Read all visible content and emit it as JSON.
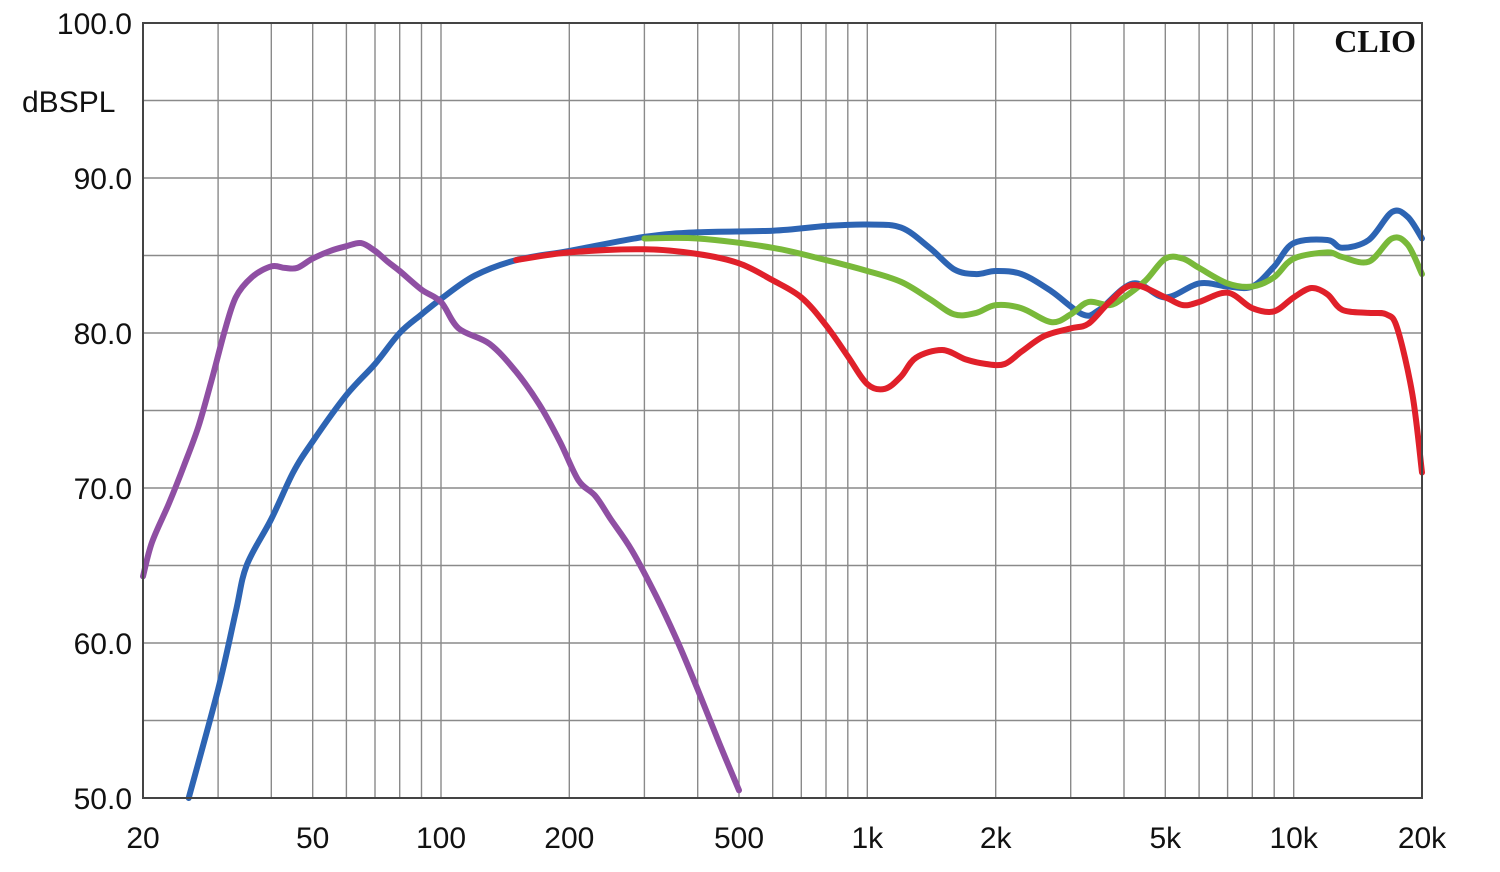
{
  "chart_data": {
    "type": "line",
    "title": "",
    "brand": "CLIO",
    "ylabel": "dBSPL",
    "xlabel": "",
    "x_scale": "log",
    "xlim": [
      20,
      20000
    ],
    "ylim": [
      50,
      100
    ],
    "grid": true,
    "x_ticks": [
      {
        "value": 20,
        "label": "20"
      },
      {
        "value": 50,
        "label": "50"
      },
      {
        "value": 100,
        "label": "100"
      },
      {
        "value": 200,
        "label": "200"
      },
      {
        "value": 500,
        "label": "500"
      },
      {
        "value": 1000,
        "label": "1k"
      },
      {
        "value": 2000,
        "label": "2k"
      },
      {
        "value": 5000,
        "label": "5k"
      },
      {
        "value": 10000,
        "label": "10k"
      },
      {
        "value": 20000,
        "label": "20k"
      }
    ],
    "y_ticks": [
      {
        "value": 100,
        "label": "100.0"
      },
      {
        "value": 90,
        "label": "90.0"
      },
      {
        "value": 80,
        "label": "80.0"
      },
      {
        "value": 70,
        "label": "70.0"
      },
      {
        "value": 60,
        "label": "60.0"
      },
      {
        "value": 50,
        "label": "50.0"
      }
    ],
    "series": [
      {
        "color": "#2d64b3",
        "points": [
          [
            25.6,
            50
          ],
          [
            30,
            57
          ],
          [
            33,
            62
          ],
          [
            35,
            65
          ],
          [
            40,
            68
          ],
          [
            45,
            71
          ],
          [
            50,
            73
          ],
          [
            60,
            76
          ],
          [
            70,
            78
          ],
          [
            80,
            80
          ],
          [
            90,
            81.2
          ],
          [
            100,
            82.2
          ],
          [
            120,
            83.7
          ],
          [
            150,
            84.7
          ],
          [
            200,
            85.3
          ],
          [
            300,
            86.2
          ],
          [
            400,
            86.5
          ],
          [
            600,
            86.6
          ],
          [
            800,
            86.9
          ],
          [
            1000,
            87
          ],
          [
            1200,
            86.8
          ],
          [
            1400,
            85.5
          ],
          [
            1600,
            84.1
          ],
          [
            1800,
            83.8
          ],
          [
            2000,
            84
          ],
          [
            2300,
            83.8
          ],
          [
            2700,
            82.7
          ],
          [
            3200,
            81.2
          ],
          [
            3500,
            81.5
          ],
          [
            4200,
            83.2
          ],
          [
            5000,
            82.3
          ],
          [
            6000,
            83.2
          ],
          [
            7000,
            83
          ],
          [
            8000,
            83
          ],
          [
            9000,
            84.3
          ],
          [
            10000,
            85.8
          ],
          [
            12000,
            86
          ],
          [
            13000,
            85.5
          ],
          [
            15000,
            86
          ],
          [
            17000,
            87.8
          ],
          [
            18500,
            87.5
          ],
          [
            20000,
            86.1
          ]
        ]
      },
      {
        "color": "#79b93a",
        "points": [
          [
            300,
            86.1
          ],
          [
            400,
            86.1
          ],
          [
            600,
            85.5
          ],
          [
            800,
            84.7
          ],
          [
            1000,
            84
          ],
          [
            1200,
            83.3
          ],
          [
            1400,
            82.2
          ],
          [
            1600,
            81.2
          ],
          [
            1800,
            81.3
          ],
          [
            2000,
            81.8
          ],
          [
            2300,
            81.6
          ],
          [
            2700,
            80.7
          ],
          [
            3000,
            81.2
          ],
          [
            3300,
            82
          ],
          [
            3700,
            81.8
          ],
          [
            4000,
            82.3
          ],
          [
            4500,
            83.4
          ],
          [
            5000,
            84.8
          ],
          [
            5500,
            84.8
          ],
          [
            6000,
            84.2
          ],
          [
            7000,
            83.2
          ],
          [
            8000,
            83
          ],
          [
            9000,
            83.6
          ],
          [
            10000,
            84.8
          ],
          [
            12000,
            85.2
          ],
          [
            13000,
            84.9
          ],
          [
            15000,
            84.6
          ],
          [
            17000,
            86.1
          ],
          [
            18500,
            85.7
          ],
          [
            20000,
            83.8
          ]
        ]
      },
      {
        "color": "#e0202a",
        "points": [
          [
            150,
            84.7
          ],
          [
            200,
            85.2
          ],
          [
            300,
            85.4
          ],
          [
            400,
            85.1
          ],
          [
            500,
            84.5
          ],
          [
            600,
            83.4
          ],
          [
            700,
            82.3
          ],
          [
            800,
            80.5
          ],
          [
            900,
            78.5
          ],
          [
            1000,
            76.7
          ],
          [
            1100,
            76.4
          ],
          [
            1200,
            77.2
          ],
          [
            1300,
            78.4
          ],
          [
            1500,
            78.9
          ],
          [
            1700,
            78.3
          ],
          [
            1900,
            78
          ],
          [
            2100,
            78
          ],
          [
            2300,
            78.8
          ],
          [
            2600,
            79.8
          ],
          [
            3000,
            80.3
          ],
          [
            3300,
            80.6
          ],
          [
            3700,
            82
          ],
          [
            4200,
            83.1
          ],
          [
            5000,
            82.3
          ],
          [
            5500,
            81.8
          ],
          [
            6000,
            82
          ],
          [
            7000,
            82.6
          ],
          [
            8000,
            81.6
          ],
          [
            9000,
            81.4
          ],
          [
            10000,
            82.3
          ],
          [
            11000,
            82.9
          ],
          [
            12000,
            82.5
          ],
          [
            13000,
            81.5
          ],
          [
            15000,
            81.3
          ],
          [
            16500,
            81.2
          ],
          [
            17500,
            80.3
          ],
          [
            19000,
            76
          ],
          [
            20000,
            71
          ]
        ]
      },
      {
        "color": "#8f4fa3",
        "points": [
          [
            20,
            64.3
          ],
          [
            21,
            66.5
          ],
          [
            23,
            69
          ],
          [
            25,
            71.5
          ],
          [
            27,
            74
          ],
          [
            29,
            77
          ],
          [
            31,
            80
          ],
          [
            33,
            82.3
          ],
          [
            36,
            83.6
          ],
          [
            40,
            84.3
          ],
          [
            43,
            84.2
          ],
          [
            46,
            84.2
          ],
          [
            50,
            84.8
          ],
          [
            55,
            85.3
          ],
          [
            60,
            85.6
          ],
          [
            65,
            85.8
          ],
          [
            70,
            85.3
          ],
          [
            75,
            84.6
          ],
          [
            80,
            84
          ],
          [
            90,
            82.8
          ],
          [
            100,
            82
          ],
          [
            110,
            80.3
          ],
          [
            130,
            79.3
          ],
          [
            150,
            77.5
          ],
          [
            170,
            75.4
          ],
          [
            190,
            73
          ],
          [
            210,
            70.5
          ],
          [
            230,
            69.5
          ],
          [
            250,
            68
          ],
          [
            280,
            66
          ],
          [
            320,
            63
          ],
          [
            360,
            60
          ],
          [
            400,
            57
          ],
          [
            450,
            53.5
          ],
          [
            500,
            50.5
          ]
        ]
      }
    ]
  }
}
